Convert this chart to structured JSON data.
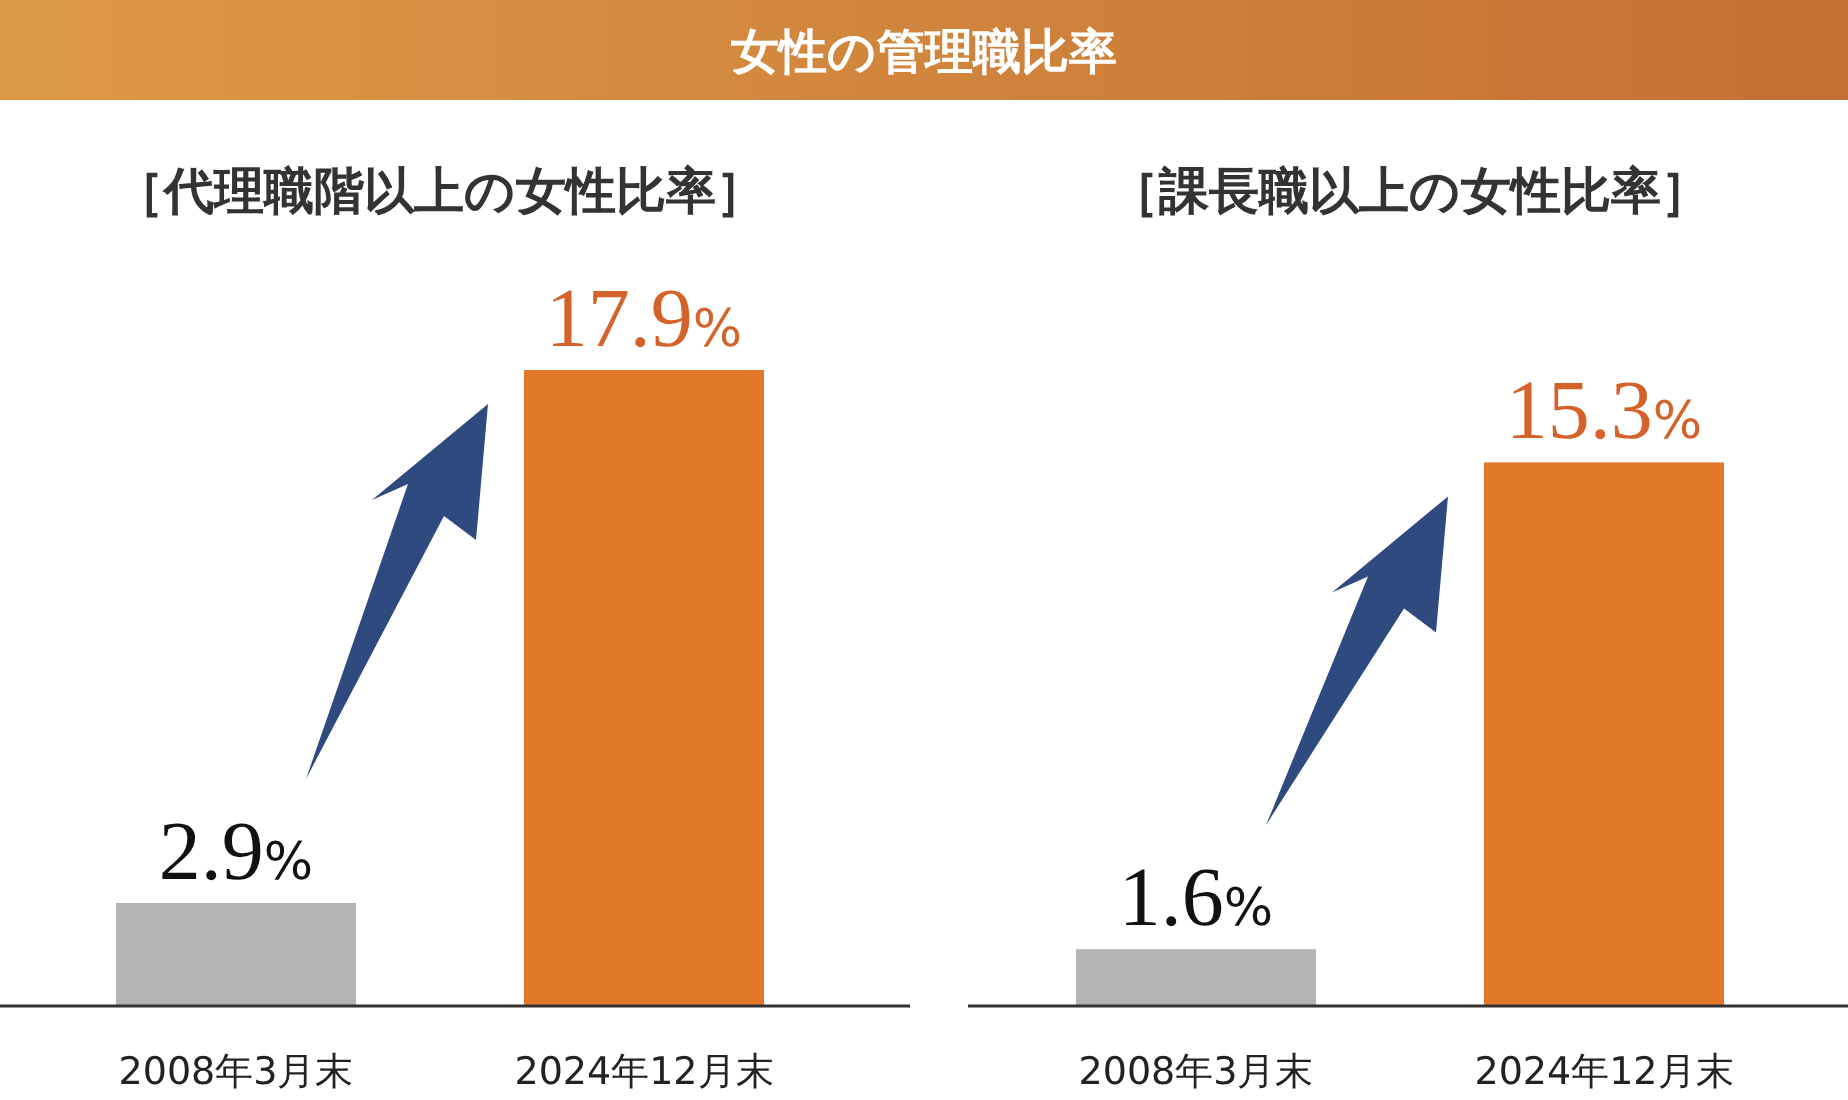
{
  "chart_data": [
    {
      "type": "other",
      "title": "女性の管理職比率"
    },
    {
      "type": "bar",
      "title": "［代理職階以上の女性比率］",
      "categories": [
        "2008年3月末",
        "2024年12月末"
      ],
      "values": [
        2.9,
        17.9
      ],
      "colors": [
        "#b3b3b3",
        "#e2782a"
      ],
      "value_labels": [
        "2.9%",
        "17.9%"
      ]
    },
    {
      "type": "bar",
      "title": "［課長職以上の女性比率］",
      "categories": [
        "2008年3月末",
        "2024年12月末"
      ],
      "values": [
        1.6,
        15.3
      ],
      "colors": [
        "#b3b3b3",
        "#e2782a"
      ],
      "value_labels": [
        "1.6%",
        "15.3%"
      ]
    }
  ]
}
